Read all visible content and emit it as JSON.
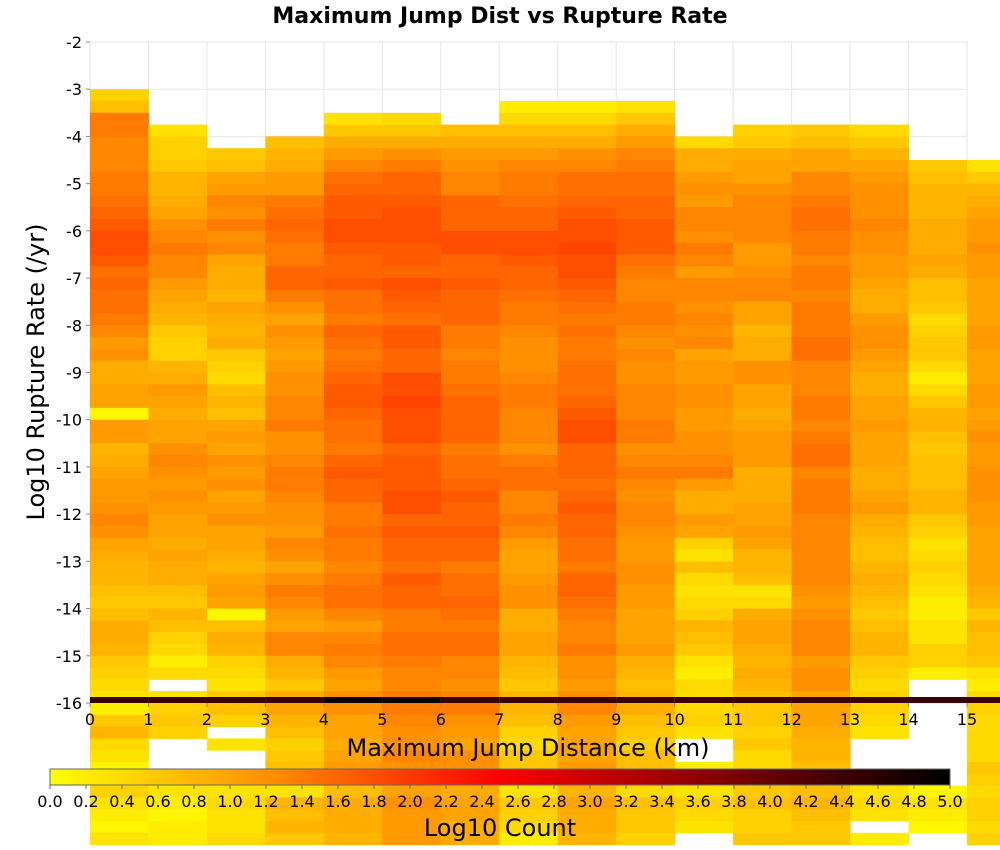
{
  "chart_data": {
    "type": "heatmap",
    "title": "Maximum Jump Dist vs Rupture Rate",
    "xlabel": "Maximum Jump Distance (km)",
    "ylabel": "Log10 Rupture Rate (/yr)",
    "colorbar_label": "Log10 Count",
    "xlim": [
      0,
      15
    ],
    "ylim": [
      -16,
      -2
    ],
    "x_ticks": [
      "0",
      "1",
      "2",
      "3",
      "4",
      "5",
      "6",
      "7",
      "8",
      "9",
      "10",
      "11",
      "12",
      "13",
      "14",
      "15"
    ],
    "y_ticks": [
      "-2",
      "-3",
      "-4",
      "-5",
      "-6",
      "-7",
      "-8",
      "-9",
      "-10",
      "-11",
      "-12",
      "-13",
      "-14",
      "-15",
      "-16"
    ],
    "colorbar_range": [
      0,
      5
    ],
    "colorbar_ticks": [
      "0.0",
      "0.2",
      "0.4",
      "0.6",
      "0.8",
      "1.0",
      "1.2",
      "1.4",
      "1.6",
      "1.8",
      "2.0",
      "2.2",
      "2.4",
      "2.6",
      "2.8",
      "3.0",
      "3.2",
      "3.4",
      "3.6",
      "3.8",
      "4.0",
      "4.2",
      "4.4",
      "4.6",
      "4.8",
      "5.0"
    ],
    "colormap": [
      "#ffff00",
      "#ff8c00",
      "#ff0000",
      "#800000",
      "#000000"
    ],
    "grid": true,
    "x_bin_width": 1,
    "y_bin_height": 0.25,
    "y_bins_top": -3,
    "notes": "values[j] = Log10 Count per column j (x from j to j+1); index 0 = y bin [-3.25,-3.0], descending by 0.25; null = empty",
    "values": [
      [
        0.5,
        0.7,
        1.4,
        1.4,
        1.3,
        1.3,
        1.3,
        1.4,
        1.4,
        1.5,
        1.6,
        1.7,
        1.8,
        1.8,
        1.7,
        1.5,
        1.6,
        1.5,
        1.5,
        1.4,
        1.3,
        1.1,
        1.2,
        0.9,
        0.9,
        1.0,
        1.0,
        0.1,
        1.1,
        1.1,
        0.8,
        0.9,
        1.0,
        1.1,
        1.1,
        1.2,
        1.3,
        1.2,
        1.0,
        0.9,
        0.8,
        0.8,
        0.7,
        0.6,
        0.7,
        0.9,
        0.9,
        0.8,
        0.6,
        0.5,
        0.4,
        0.3,
        0.2,
        0.6,
        0.8,
        0.4,
        0.3,
        0.1,
        null,
        0.5,
        0.3,
        0.2,
        0.1,
        0.3
      ],
      [
        null,
        null,
        null,
        0.3,
        0.5,
        0.5,
        0.6,
        0.8,
        0.8,
        0.9,
        1.0,
        1.2,
        1.3,
        1.4,
        1.3,
        1.3,
        1.1,
        1.0,
        0.9,
        0.8,
        0.6,
        0.5,
        0.5,
        0.8,
        0.9,
        1.1,
        1.0,
        0.9,
        1.0,
        1.0,
        1.2,
        1.3,
        1.2,
        1.1,
        1.2,
        1.1,
        1.0,
        1.0,
        0.9,
        1.0,
        0.9,
        0.9,
        0.7,
        0.6,
        0.8,
        0.7,
        0.5,
        0.4,
        0.2,
        0.4,
        null,
        0.3,
        0.5,
        0.6,
        0.5,
        null,
        null,
        null,
        0.1,
        0.3,
        0.2,
        0.1,
        0.2,
        0.2
      ],
      [
        null,
        null,
        null,
        null,
        null,
        0.6,
        0.7,
        1.0,
        1.1,
        1.3,
        1.2,
        1.4,
        1.2,
        1.3,
        1.0,
        0.9,
        0.9,
        0.8,
        1.0,
        0.9,
        0.8,
        0.9,
        0.6,
        0.5,
        0.4,
        0.7,
        0.8,
        0.7,
        1.0,
        1.1,
        1.0,
        1.2,
        1.1,
        1.2,
        1.0,
        1.1,
        1.2,
        1.0,
        1.0,
        0.9,
        0.8,
        1.0,
        1.1,
        1.0,
        0.1,
        0.7,
        0.9,
        0.8,
        0.5,
        0.4,
        0.3,
        0.6,
        0.7,
        0.5,
        null,
        0.3,
        null,
        null,
        null,
        0.3,
        0.4,
        0.3,
        0.3,
        0.4
      ],
      [
        null,
        null,
        null,
        null,
        0.7,
        0.8,
        0.9,
        1.1,
        1.1,
        1.4,
        1.5,
        1.6,
        1.5,
        1.4,
        1.4,
        1.6,
        1.6,
        1.4,
        1.2,
        1.0,
        1.2,
        1.1,
        1.0,
        1.1,
        1.2,
        1.2,
        1.3,
        1.3,
        1.4,
        1.2,
        1.2,
        1.3,
        1.4,
        1.4,
        1.3,
        1.2,
        1.2,
        1.1,
        1.3,
        1.2,
        1.0,
        1.2,
        1.4,
        1.3,
        1.1,
        1.0,
        1.3,
        1.3,
        0.9,
        0.8,
        0.6,
        0.9,
        1.0,
        0.8,
        0.7,
        0.5,
        0.6,
        0.7,
        0.5,
        0.3,
        0.8,
        0.7,
        0.8,
        0.6
      ],
      [
        null,
        null,
        0.3,
        0.6,
        0.9,
        1.1,
        1.3,
        1.5,
        1.6,
        1.7,
        1.7,
        1.8,
        1.8,
        1.7,
        1.6,
        1.6,
        1.7,
        1.5,
        1.5,
        1.4,
        1.6,
        1.5,
        1.4,
        1.5,
        1.6,
        1.7,
        1.7,
        1.6,
        1.5,
        1.5,
        1.4,
        1.6,
        1.7,
        1.6,
        1.6,
        1.4,
        1.4,
        1.5,
        1.4,
        1.4,
        1.3,
        1.4,
        1.5,
        1.5,
        1.3,
        1.1,
        1.3,
        1.4,
        1.3,
        1.1,
        1.0,
        1.2,
        1.2,
        1.0,
        1.0,
        0.9,
        1.0,
        1.1,
        0.8,
        0.7,
        0.9,
        0.9,
        0.9,
        0.8
      ],
      [
        null,
        null,
        0.4,
        0.6,
        0.9,
        1.2,
        1.4,
        1.6,
        1.6,
        1.7,
        1.8,
        1.8,
        1.8,
        1.7,
        1.7,
        1.6,
        1.8,
        1.7,
        1.6,
        1.5,
        1.7,
        1.7,
        1.6,
        1.6,
        1.8,
        1.8,
        1.9,
        1.8,
        1.8,
        1.8,
        1.6,
        1.7,
        1.7,
        1.7,
        1.8,
        1.8,
        1.6,
        1.7,
        1.6,
        1.6,
        1.5,
        1.7,
        1.6,
        1.6,
        1.4,
        1.4,
        1.5,
        1.5,
        1.4,
        1.3,
        1.3,
        1.4,
        1.4,
        1.3,
        1.2,
        1.2,
        1.3,
        1.2,
        1.1,
        1.0,
        1.2,
        1.1,
        1.1,
        1.1
      ],
      [
        null,
        null,
        null,
        0.7,
        0.9,
        1.1,
        1.2,
        1.3,
        1.3,
        1.6,
        1.6,
        1.6,
        1.8,
        1.8,
        1.6,
        1.6,
        1.7,
        1.6,
        1.6,
        1.6,
        1.4,
        1.4,
        1.3,
        1.4,
        1.4,
        1.5,
        1.6,
        1.6,
        1.6,
        1.6,
        1.4,
        1.5,
        1.5,
        1.6,
        1.7,
        1.6,
        1.6,
        1.7,
        1.6,
        1.6,
        1.4,
        1.5,
        1.5,
        1.6,
        1.5,
        1.4,
        1.5,
        1.5,
        1.3,
        1.3,
        1.2,
        1.3,
        1.4,
        1.2,
        1.1,
        1.0,
        1.2,
        1.2,
        1.0,
        0.9,
        1.0,
        1.0,
        0.9,
        0.9
      ],
      [
        null,
        0.2,
        0.4,
        0.7,
        0.9,
        1.1,
        1.3,
        1.4,
        1.4,
        1.5,
        1.6,
        1.6,
        1.8,
        1.8,
        1.7,
        1.6,
        1.6,
        1.5,
        1.4,
        1.4,
        1.3,
        1.2,
        1.2,
        1.2,
        1.3,
        1.4,
        1.4,
        1.3,
        1.3,
        1.3,
        1.2,
        1.4,
        1.5,
        1.5,
        1.3,
        1.3,
        1.4,
        1.3,
        1.1,
        1.0,
        1.0,
        1.1,
        1.2,
        1.2,
        0.9,
        0.9,
        1.0,
        1.0,
        0.8,
        0.7,
        0.6,
        0.8,
        0.8,
        0.7,
        0.5,
        0.4,
        0.6,
        0.6,
        0.4,
        0.3,
        0.6,
        0.5,
        0.4,
        0.2
      ],
      [
        null,
        0.2,
        0.4,
        0.7,
        0.9,
        1.2,
        1.3,
        1.5,
        1.5,
        1.6,
        1.7,
        1.8,
        1.8,
        1.9,
        1.8,
        1.8,
        1.7,
        1.6,
        1.5,
        1.4,
        1.5,
        1.4,
        1.4,
        1.5,
        1.5,
        1.5,
        1.6,
        1.7,
        1.8,
        1.8,
        1.6,
        1.6,
        1.6,
        1.5,
        1.6,
        1.7,
        1.6,
        1.6,
        1.5,
        1.5,
        1.4,
        1.6,
        1.6,
        1.5,
        1.4,
        1.3,
        1.3,
        1.4,
        1.2,
        1.2,
        1.1,
        1.2,
        1.3,
        1.1,
        1.0,
        1.0,
        1.0,
        1.1,
        0.9,
        0.8,
        1.0,
        0.9,
        0.9,
        0.8
      ],
      [
        null,
        0.3,
        0.6,
        0.9,
        1.1,
        1.3,
        1.4,
        1.5,
        1.5,
        1.6,
        1.6,
        1.7,
        1.7,
        1.7,
        1.5,
        1.4,
        1.3,
        1.3,
        1.4,
        1.4,
        1.3,
        1.2,
        1.3,
        1.2,
        1.2,
        1.3,
        1.3,
        1.3,
        1.4,
        1.4,
        1.2,
        1.3,
        1.4,
        1.3,
        1.2,
        1.3,
        1.3,
        1.2,
        1.1,
        1.1,
        1.2,
        1.2,
        1.1,
        1.1,
        1.0,
        1.0,
        1.0,
        1.1,
        0.9,
        0.8,
        0.7,
        0.8,
        0.9,
        0.7,
        0.6,
        0.5,
        0.7,
        0.7,
        0.5,
        0.4,
        0.7,
        0.6,
        0.6,
        0.5
      ],
      [
        null,
        null,
        null,
        null,
        0.4,
        0.9,
        0.9,
        1.1,
        1.2,
        1.1,
        1.3,
        1.3,
        1.2,
        1.4,
        1.3,
        1.1,
        1.3,
        1.3,
        1.2,
        1.3,
        1.2,
        1.3,
        1.0,
        1.1,
        1.1,
        1.2,
        1.2,
        1.1,
        1.1,
        1.2,
        1.2,
        1.3,
        1.4,
        1.1,
        0.9,
        0.9,
        1.1,
        1.0,
        0.5,
        0.3,
        0.7,
        0.4,
        0.3,
        0.4,
        0.5,
        0.8,
        0.7,
        0.6,
        0.3,
        0.2,
        0.4,
        0.4,
        0.4,
        0.5,
        0.3,
        null,
        null,
        0.2,
        null,
        0.3,
        0.5,
        0.4,
        0.3,
        null
      ],
      [
        null,
        null,
        null,
        0.5,
        0.6,
        0.9,
        1.0,
        1.0,
        1.2,
        1.3,
        1.3,
        1.3,
        1.3,
        1.1,
        1.1,
        1.2,
        1.3,
        1.3,
        1.0,
        1.0,
        0.8,
        0.9,
        0.9,
        1.2,
        1.2,
        1.0,
        1.0,
        0.9,
        1.0,
        1.1,
        1.1,
        1.1,
        0.9,
        0.9,
        0.9,
        1.0,
        1.0,
        1.1,
        1.0,
        0.8,
        0.8,
        0.7,
        0.3,
        0.4,
        0.9,
        1.0,
        1.0,
        0.9,
        0.8,
        0.9,
        0.8,
        0.7,
        0.6,
        0.6,
        0.5,
        0.6,
        0.4,
        0.4,
        0.5,
        0.6,
        0.7,
        0.5,
        0.5,
        0.6
      ],
      [
        null,
        null,
        null,
        0.6,
        0.7,
        1.0,
        1.0,
        1.3,
        1.3,
        1.4,
        1.5,
        1.5,
        1.4,
        1.4,
        1.3,
        1.4,
        1.4,
        1.3,
        1.4,
        1.4,
        1.4,
        1.5,
        1.5,
        1.3,
        1.3,
        1.3,
        1.4,
        1.4,
        1.3,
        1.4,
        1.5,
        1.5,
        1.3,
        1.4,
        1.4,
        1.4,
        1.3,
        1.3,
        1.3,
        1.3,
        1.3,
        1.3,
        1.2,
        1.1,
        1.2,
        1.3,
        1.3,
        1.3,
        1.1,
        1.2,
        1.2,
        1.0,
        1.0,
        1.0,
        0.9,
        0.8,
        0.8,
        0.7,
        0.8,
        0.7,
        0.8,
        0.7,
        0.6,
        0.6
      ],
      [
        null,
        null,
        null,
        0.4,
        0.6,
        0.8,
        1.0,
        1.1,
        1.2,
        1.2,
        1.2,
        1.3,
        1.2,
        1.2,
        1.1,
        1.1,
        1.0,
        0.9,
        0.9,
        1.1,
        1.2,
        1.2,
        1.1,
        1.0,
        0.9,
        0.9,
        1.0,
        1.0,
        1.1,
        1.0,
        1.0,
        1.0,
        0.9,
        0.9,
        1.0,
        1.1,
        0.9,
        0.8,
        0.7,
        0.7,
        0.8,
        0.9,
        0.8,
        0.7,
        0.6,
        0.7,
        0.8,
        0.8,
        0.6,
        0.5,
        0.4,
        0.5,
        0.5,
        0.4,
        0.3,
        null,
        null,
        null,
        0.2,
        0.3,
        0.4,
        0.3,
        null,
        0.2
      ],
      [
        null,
        null,
        null,
        null,
        null,
        null,
        0.6,
        0.7,
        0.8,
        0.8,
        0.8,
        0.9,
        0.9,
        0.9,
        1.0,
        0.9,
        0.7,
        0.7,
        0.6,
        0.4,
        0.5,
        0.6,
        0.6,
        0.4,
        0.2,
        0.4,
        0.6,
        0.8,
        0.8,
        0.7,
        0.6,
        0.7,
        0.7,
        0.7,
        0.8,
        0.8,
        0.6,
        0.5,
        0.3,
        0.4,
        0.5,
        0.4,
        0.3,
        0.2,
        0.2,
        0.3,
        0.3,
        0.5,
        0.5,
        0.2,
        null,
        null,
        null,
        null,
        null,
        null,
        null,
        null,
        null,
        0.1,
        0.3,
        0.2,
        0.1,
        null
      ],
      [
        null,
        null,
        null,
        null,
        null,
        null,
        0.3,
        0.6,
        0.8,
        0.9,
        1.0,
        1.1,
        1.1,
        1.2,
        1.1,
        1.1,
        1.0,
        1.0,
        1.0,
        1.0,
        1.1,
        1.1,
        1.0,
        1.0,
        1.0,
        1.1,
        1.1,
        1.0,
        1.1,
        1.2,
        1.1,
        1.1,
        1.2,
        1.2,
        1.2,
        1.1,
        1.1,
        1.0,
        1.0,
        1.0,
        1.0,
        1.0,
        0.9,
        0.8,
        0.6,
        0.8,
        0.7,
        0.7,
        0.6,
        0.3,
        0.2,
        0.4,
        0.5,
        0.4,
        0.4,
        0.4,
        0.4,
        0.6,
        0.5,
        0.4,
        0.5,
        0.5,
        0.4,
        0.5
      ]
    ]
  }
}
